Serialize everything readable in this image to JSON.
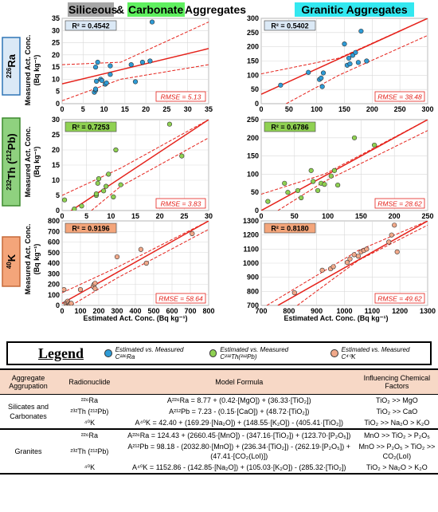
{
  "headers": {
    "left_part1": "Siliceous",
    "left_amp": " & ",
    "left_part2": "Carbonate",
    "left_part3": " Aggregates",
    "right": "Granitic Aggregates"
  },
  "row_labels": [
    {
      "sup": "226",
      "base": "Ra",
      "color": "#dbe9f6"
    },
    {
      "sup": "232",
      "base": "Th (",
      "sup2": "212",
      "base2": "Pb)",
      "color": "#8fd17f"
    },
    {
      "sup": "40",
      "base": "K",
      "color": "#f4a57a"
    }
  ],
  "ylabel_line1": "Measured Act. Conc.",
  "ylabel_line2": "(Bq kg⁻¹)",
  "xlabel": "Estimated Act. Conc. (Bq kg⁻¹)",
  "colors": {
    "ra": "#2e9bd6",
    "th": "#8fd152",
    "k": "#f1a98a",
    "fit_line": "#e5221b",
    "siliceous_bg": "#a6a6a6",
    "carbonate_bg": "#5ff05f",
    "granitic_bg": "#33e8f0"
  },
  "chart_data": [
    {
      "type": "scatter",
      "panel": "Ra-siliceous",
      "r2": "R² = 0.4542",
      "rmse": "RMSE = 5.13",
      "r2_color": "#dbe9f6",
      "xlim": [
        0,
        35
      ],
      "ylim": [
        0,
        35
      ],
      "xticks": [
        0,
        5,
        10,
        15,
        20,
        25,
        30,
        35
      ],
      "yticks": [
        0,
        5,
        10,
        15,
        20,
        25,
        30,
        35
      ],
      "x": [
        7.7,
        8,
        8,
        8.2,
        8,
        8.5,
        9.2,
        9.5,
        10.3,
        10.6,
        11.5,
        11.5,
        16.5,
        17.5,
        19.2,
        21,
        21.5
      ],
      "y": [
        4.7,
        5.5,
        6,
        9.2,
        15,
        17,
        10,
        9.5,
        8,
        8.5,
        12,
        15.5,
        16,
        9,
        17,
        17.5,
        33.5
      ],
      "fit": [
        [
          0,
          8.1
        ],
        [
          35,
          22.6
        ]
      ],
      "band_upper": [
        [
          0,
          16
        ],
        [
          14,
          17
        ],
        [
          35,
          33.5
        ]
      ],
      "band_lower": [
        [
          0,
          1.2
        ],
        [
          14,
          10
        ],
        [
          35,
          16
        ]
      ]
    },
    {
      "type": "scatter",
      "panel": "Ra-granitic",
      "r2": "R² = 0.5402",
      "rmse": "RMSE = 38.48",
      "r2_color": "#dbe9f6",
      "xlim": [
        0,
        300
      ],
      "ylim": [
        0,
        300
      ],
      "xticks": [
        0,
        50,
        100,
        150,
        200,
        250,
        300
      ],
      "yticks": [
        0,
        50,
        100,
        150,
        200,
        250,
        300
      ],
      "x": [
        35,
        85,
        105,
        108,
        110,
        112,
        150,
        155,
        158,
        160,
        165,
        170,
        175,
        180,
        190
      ],
      "y": [
        65,
        110,
        85,
        90,
        60,
        108,
        210,
        135,
        160,
        140,
        170,
        180,
        145,
        255,
        150
      ],
      "fit": [
        [
          0,
          33
        ],
        [
          300,
          300
        ]
      ],
      "band_upper": [
        [
          0,
          105
        ],
        [
          140,
          160
        ],
        [
          300,
          300
        ]
      ],
      "band_lower": [
        [
          45,
          0
        ],
        [
          140,
          100
        ],
        [
          300,
          240
        ]
      ]
    },
    {
      "type": "scatter",
      "panel": "Th-siliceous",
      "r2": "R² = 0.7253",
      "rmse": "RMSE = 3.83",
      "r2_color": "#8fd152",
      "xlim": [
        0,
        30
      ],
      "ylim": [
        0,
        30
      ],
      "xticks": [
        0,
        5,
        10,
        15,
        20,
        25,
        30
      ],
      "yticks": [
        0,
        5,
        10,
        15,
        20,
        25,
        30
      ],
      "x": [
        0.5,
        2.5,
        4,
        7,
        7,
        7.3,
        7.5,
        8.5,
        9,
        9.5,
        10.5,
        11,
        12,
        22,
        24.5
      ],
      "y": [
        3.5,
        0.5,
        1.5,
        5,
        5.5,
        9,
        10.5,
        6.5,
        8,
        12,
        4.5,
        20,
        8.5,
        28.5,
        18
      ],
      "fit": [
        [
          0,
          -2
        ],
        [
          30,
          30
        ]
      ],
      "band_upper": [
        [
          0,
          5
        ],
        [
          12,
          14
        ],
        [
          30,
          30
        ]
      ],
      "band_lower": [
        [
          6,
          0
        ],
        [
          12,
          8
        ],
        [
          30,
          24
        ]
      ]
    },
    {
      "type": "scatter",
      "panel": "Th-granitic",
      "r2": "R² = 0.6786",
      "rmse": "RMSE = 28.62",
      "r2_color": "#8fd152",
      "xlim": [
        0,
        250
      ],
      "ylim": [
        0,
        250
      ],
      "xticks": [
        0,
        50,
        100,
        150,
        200,
        250
      ],
      "yticks": [
        0,
        50,
        100,
        150,
        200,
        250
      ],
      "x": [
        10,
        35,
        40,
        55,
        60,
        75,
        78,
        85,
        90,
        95,
        105,
        110,
        115,
        140,
        170
      ],
      "y": [
        25,
        75,
        50,
        55,
        35,
        110,
        80,
        55,
        75,
        72,
        95,
        110,
        70,
        200,
        180
      ],
      "fit": [
        [
          0,
          0
        ],
        [
          250,
          250
        ]
      ],
      "band_upper": [
        [
          0,
          45
        ],
        [
          95,
          100
        ],
        [
          250,
          250
        ]
      ],
      "band_lower": [
        [
          25,
          0
        ],
        [
          95,
          80
        ],
        [
          250,
          220
        ]
      ]
    },
    {
      "type": "scatter",
      "panel": "K-siliceous",
      "r2": "R² = 0.9196",
      "rmse": "RMSE = 58.64",
      "r2_color": "#f4a57a",
      "xlim": [
        0,
        800
      ],
      "ylim": [
        0,
        800
      ],
      "xticks": [
        0,
        100,
        200,
        300,
        400,
        500,
        600,
        700,
        800
      ],
      "yticks": [
        0,
        100,
        200,
        300,
        400,
        500,
        600,
        700,
        800
      ],
      "x": [
        10,
        20,
        25,
        30,
        35,
        40,
        45,
        50,
        100,
        170,
        175,
        180,
        180,
        300,
        430,
        460,
        710
      ],
      "y": [
        150,
        20,
        30,
        40,
        25,
        10,
        15,
        20,
        150,
        180,
        200,
        210,
        160,
        460,
        530,
        400,
        680
      ],
      "fit": [
        [
          0,
          20
        ],
        [
          800,
          800
        ]
      ],
      "band_upper": [
        [
          0,
          120
        ],
        [
          300,
          360
        ],
        [
          800,
          800
        ]
      ],
      "band_lower": [
        [
          50,
          0
        ],
        [
          300,
          260
        ],
        [
          800,
          720
        ]
      ]
    },
    {
      "type": "scatter",
      "panel": "K-granitic",
      "r2": "R² = 0.8180",
      "rmse": "RMSE = 49.62",
      "r2_color": "#f4a57a",
      "xlim": [
        700,
        1300
      ],
      "ylim": [
        700,
        1300
      ],
      "xticks": [
        700,
        800,
        900,
        1000,
        1100,
        1200,
        1300
      ],
      "yticks": [
        700,
        800,
        900,
        1000,
        1100,
        1200,
        1300
      ],
      "x": [
        820,
        920,
        950,
        960,
        1010,
        1020,
        1035,
        1050,
        1060,
        1070,
        1080,
        1160,
        1170,
        1180,
        1190
      ],
      "y": [
        790,
        950,
        960,
        975,
        1005,
        1030,
        1060,
        1050,
        1080,
        1090,
        1100,
        1150,
        1200,
        1270,
        1080
      ],
      "fit": [
        [
          760,
          700
        ],
        [
          1300,
          1300
        ]
      ],
      "band_upper": [
        [
          720,
          700
        ],
        [
          1050,
          1090
        ],
        [
          1300,
          1300
        ]
      ],
      "band_lower": [
        [
          830,
          700
        ],
        [
          1050,
          1020
        ],
        [
          1300,
          1270
        ]
      ]
    }
  ],
  "legend": {
    "title": "Legend",
    "items": [
      {
        "text": "Estimated vs. Measured C²²⁶Ra",
        "color": "#2e9bd6"
      },
      {
        "text": "Estimated vs. Measured C²³²Th(²¹²Pb)",
        "color": "#8fd152"
      },
      {
        "text": "Estimated vs. Measured C⁴⁰K",
        "color": "#f1a98a"
      }
    ]
  },
  "table": {
    "headers": [
      "Aggregate Aggrupation",
      "Radionuclide",
      "Model Formula",
      "Influencing Chemical Factors"
    ],
    "groups": [
      {
        "name": "Silicates and Carbonates",
        "rows": [
          {
            "nuclide": "²²⁶Ra",
            "formula": "A²²⁶Ra = 8.77 + (0.42·[MgO]) + (36.33·[TiO₂])",
            "factor": "TiO₂ >> MgO"
          },
          {
            "nuclide": "²³²Th (²¹²Pb)",
            "formula": "A²¹²Pb = 7.23 - (0.15·[CaO]) + (48.72·[TiO₂])",
            "factor": "TiO₂ >> CaO"
          },
          {
            "nuclide": "⁴⁰K",
            "formula": "A⁴⁰K = 42.40 + (169.29·[Na₂O]) + (148.55·[K₂O]) - (405.41·[TiO₂])",
            "factor": "TiO₂ >> Na₂O > K₂O"
          }
        ]
      },
      {
        "name": "Granites",
        "rows": [
          {
            "nuclide": "²²⁶Ra",
            "formula": "A²²⁶Ra = 124.43 + (2660.45·[MnO]) - (347.16·[TiO₂]) + (123.70·[P₂O₅])",
            "factor": "MnO >> TiO₂ > P₂O₅"
          },
          {
            "nuclide": "²³²Th (²¹²Pb)",
            "formula": "A²¹²Pb = 98.18 - (2032.80·[MnO]) + (236.34·[TiO₂]) - (262.19·[P₂O₅]) + (47.41·[CO₂(LoI)])",
            "factor": "MnO >> P₂O₅ > TiO₂ >> CO₂(LoI)"
          },
          {
            "nuclide": "⁴⁰K",
            "formula": "A⁴⁰K = 1152.86 - (142.85·[Na₂O]) + (105.03·[K₂O]) - (285.32·[TiO₂])",
            "factor": "TiO₂ > Na₂O > K₂O"
          }
        ]
      }
    ]
  }
}
